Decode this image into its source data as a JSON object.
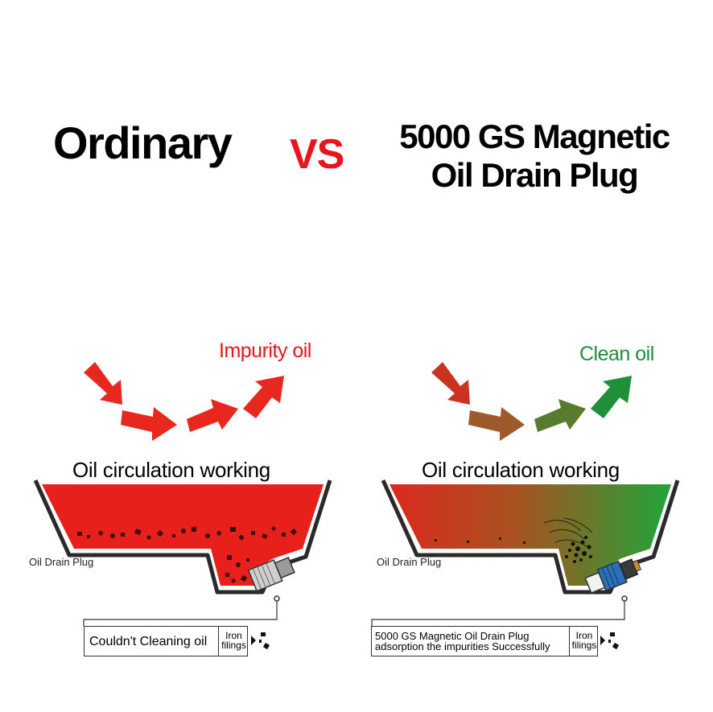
{
  "header": {
    "left_title": "Ordinary",
    "vs": "VS",
    "right_title_line1": "5000 GS Magnetic",
    "right_title_line2": "Oil Drain Plug"
  },
  "left_panel": {
    "flow_label": "Impurity oil",
    "circulation_label": "Oil circulation working",
    "plug_label": "Oil Drain Plug",
    "box_text": "Couldn't Cleaning oil",
    "filings_line1": "Iron",
    "filings_line2": "filings",
    "oil_color": "#e8201c"
  },
  "right_panel": {
    "flow_label": "Clean oil",
    "circulation_label": "Oil circulation working",
    "plug_label": "Oil Drain Plug",
    "box_line1": "5000 GS Magnetic Oil Drain Plug",
    "box_line2": "adsorption the impurities Successfully",
    "filings_line1": "Iron",
    "filings_line2": "filings",
    "oil_color_start": "#d92620",
    "oil_color_end": "#1f9a3a"
  },
  "colors": {
    "red": "#e8161c",
    "green": "#1e8f3c"
  }
}
